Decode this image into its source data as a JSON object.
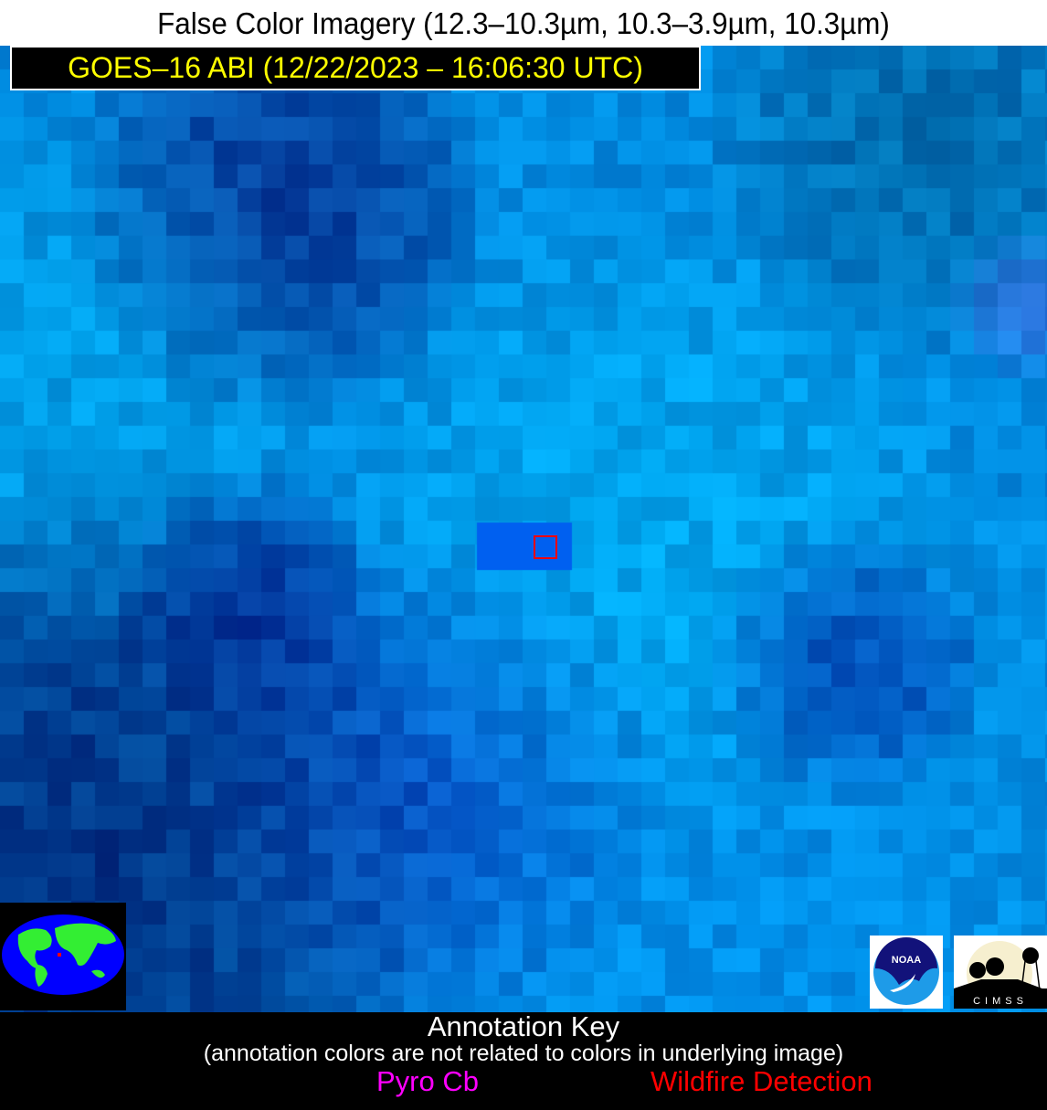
{
  "header": {
    "title": "False Color Imagery (12.3–10.3µm, 10.3–3.9µm, 10.3µm)",
    "subtitle": "GOES–16 ABI (12/22/2023 – 16:06:30 UTC)"
  },
  "image": {
    "description_icon": "satellite-false-color-mosaic",
    "marker_color": "#ff0000"
  },
  "logos": {
    "noaa": "NOAA",
    "cimss": "CIMSS"
  },
  "annotation_key": {
    "title": "Annotation Key",
    "note": "(annotation colors are not related to colors in underlying image)",
    "items": [
      {
        "label": "Pyro Cb",
        "color": "#ff00ff"
      },
      {
        "label": "Wildfire Detection",
        "color": "#ff0000"
      }
    ]
  }
}
